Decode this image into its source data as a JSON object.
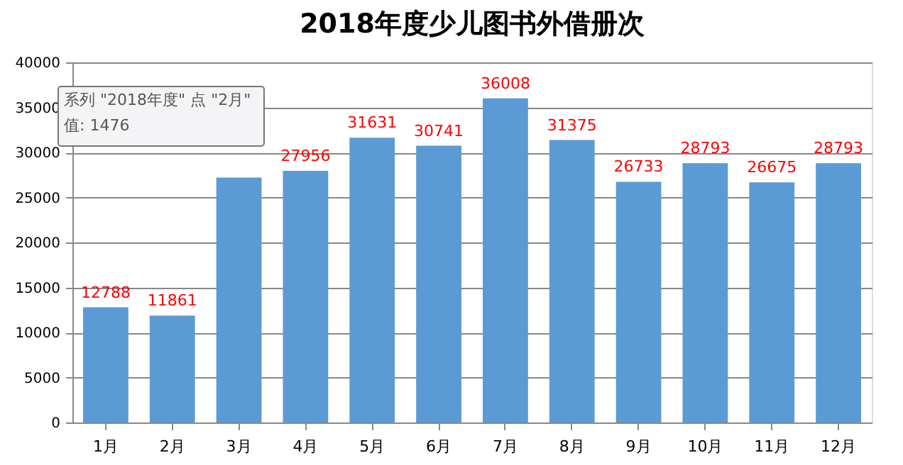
{
  "chart_data": {
    "type": "bar",
    "title": "2018年度少儿图书外借册次",
    "categories": [
      "1月",
      "2月",
      "3月",
      "4月",
      "5月",
      "6月",
      "7月",
      "8月",
      "9月",
      "10月",
      "11月",
      "12月"
    ],
    "values": [
      12788,
      11861,
      27200,
      27956,
      31631,
      30741,
      36008,
      31375,
      26733,
      28793,
      26675,
      28793
    ],
    "value_labels": [
      "12788",
      "11861",
      null,
      "27956",
      "31631",
      "30741",
      "36008",
      "31375",
      "26733",
      "28793",
      "26675",
      "28793"
    ],
    "color": "#5b9bd5",
    "ylim": [
      0,
      40000
    ],
    "yticks": [
      0,
      5000,
      10000,
      15000,
      20000,
      25000,
      30000,
      35000,
      40000
    ],
    "grid": "y",
    "annotations": [
      "系列 \"2018年度\" 点 \"2月\"",
      "值: 1476"
    ]
  }
}
